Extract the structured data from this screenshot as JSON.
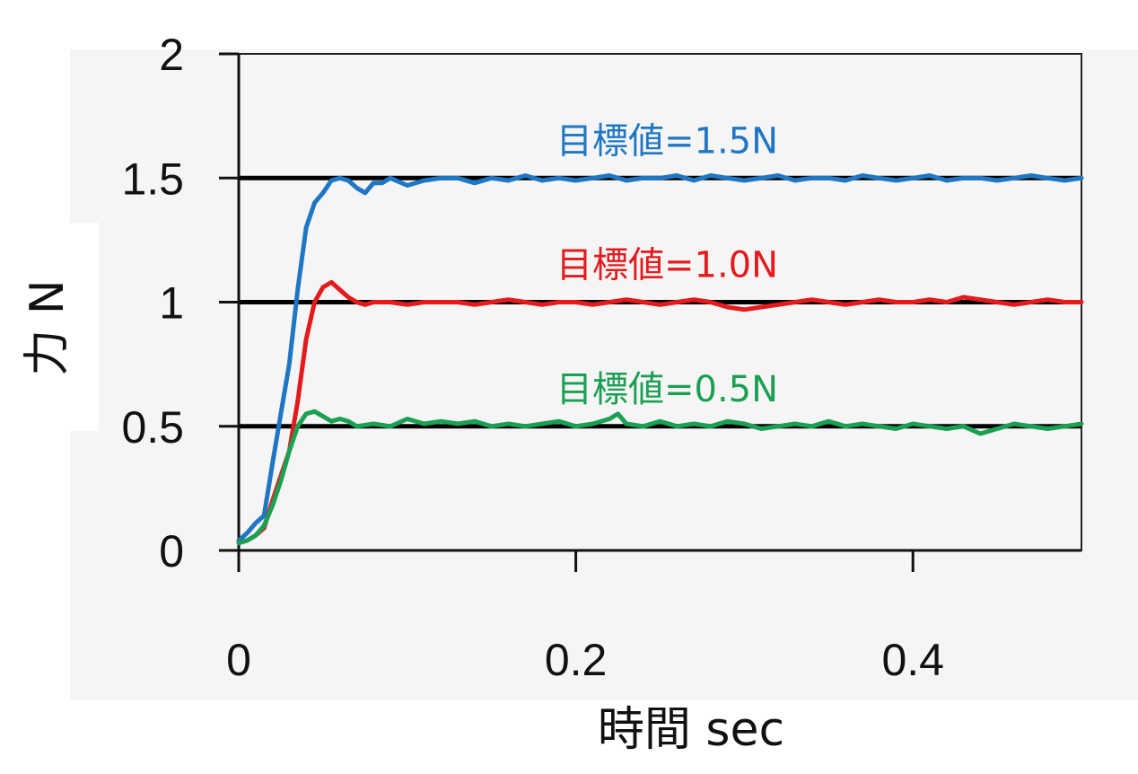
{
  "chart_data": {
    "type": "line",
    "xlabel": "時間 sec",
    "ylabel": "力 N",
    "xlim": [
      0,
      0.5
    ],
    "ylim": [
      0,
      2
    ],
    "x_ticks": [
      0,
      0.2,
      0.4
    ],
    "x_tick_labels": [
      "0",
      "0.2",
      "0.4"
    ],
    "y_ticks": [
      0,
      0.5,
      1,
      1.5,
      2
    ],
    "y_tick_labels": [
      "0",
      "0.5",
      "1",
      "1.5",
      "2"
    ],
    "reference_lines": [
      0.5,
      1.0,
      1.5
    ],
    "grid": false,
    "legend": "none",
    "series": [
      {
        "label": "目標値=1.5N",
        "color": "#1f77c4",
        "x": [
          0,
          0.005,
          0.01,
          0.015,
          0.02,
          0.025,
          0.03,
          0.035,
          0.04,
          0.045,
          0.05,
          0.055,
          0.06,
          0.065,
          0.07,
          0.075,
          0.08,
          0.085,
          0.09,
          0.1,
          0.11,
          0.12,
          0.13,
          0.14,
          0.15,
          0.16,
          0.17,
          0.18,
          0.19,
          0.2,
          0.21,
          0.22,
          0.23,
          0.24,
          0.25,
          0.26,
          0.27,
          0.28,
          0.29,
          0.3,
          0.31,
          0.32,
          0.33,
          0.34,
          0.35,
          0.36,
          0.37,
          0.38,
          0.39,
          0.4,
          0.41,
          0.42,
          0.43,
          0.44,
          0.45,
          0.46,
          0.47,
          0.48,
          0.49,
          0.5
        ],
        "y": [
          0.04,
          0.07,
          0.11,
          0.14,
          0.35,
          0.55,
          0.75,
          1.05,
          1.3,
          1.4,
          1.44,
          1.49,
          1.5,
          1.49,
          1.46,
          1.44,
          1.48,
          1.48,
          1.5,
          1.47,
          1.49,
          1.5,
          1.5,
          1.48,
          1.5,
          1.49,
          1.51,
          1.49,
          1.5,
          1.49,
          1.5,
          1.51,
          1.49,
          1.5,
          1.5,
          1.51,
          1.49,
          1.51,
          1.5,
          1.49,
          1.5,
          1.51,
          1.49,
          1.5,
          1.5,
          1.49,
          1.51,
          1.5,
          1.49,
          1.5,
          1.51,
          1.49,
          1.5,
          1.5,
          1.49,
          1.5,
          1.51,
          1.5,
          1.49,
          1.5
        ]
      },
      {
        "label": "目標値=1.0N",
        "color": "#e41a1c",
        "x": [
          0,
          0.005,
          0.01,
          0.015,
          0.02,
          0.025,
          0.03,
          0.035,
          0.04,
          0.045,
          0.05,
          0.055,
          0.06,
          0.065,
          0.07,
          0.075,
          0.08,
          0.09,
          0.1,
          0.11,
          0.12,
          0.13,
          0.14,
          0.15,
          0.16,
          0.17,
          0.18,
          0.19,
          0.2,
          0.21,
          0.22,
          0.23,
          0.24,
          0.25,
          0.26,
          0.27,
          0.28,
          0.29,
          0.3,
          0.31,
          0.32,
          0.33,
          0.34,
          0.35,
          0.36,
          0.37,
          0.38,
          0.39,
          0.4,
          0.41,
          0.42,
          0.43,
          0.44,
          0.45,
          0.46,
          0.47,
          0.48,
          0.49,
          0.5
        ],
        "y": [
          0.03,
          0.04,
          0.06,
          0.09,
          0.2,
          0.3,
          0.4,
          0.6,
          0.85,
          1.0,
          1.06,
          1.08,
          1.05,
          1.02,
          1.0,
          0.99,
          1.0,
          1.0,
          0.99,
          1.0,
          1.0,
          1.0,
          0.99,
          1.0,
          1.01,
          1.0,
          0.99,
          1.0,
          1.0,
          0.99,
          1.0,
          1.01,
          1.0,
          0.99,
          1.0,
          1.01,
          1.0,
          0.98,
          0.97,
          0.98,
          0.99,
          1.0,
          1.01,
          1.0,
          0.99,
          1.0,
          1.01,
          1.0,
          1.0,
          1.01,
          1.0,
          1.02,
          1.01,
          1.0,
          0.99,
          1.0,
          1.01,
          1.0,
          1.0
        ]
      },
      {
        "label": "目標値=0.5N",
        "color": "#1aa052",
        "x": [
          0,
          0.005,
          0.01,
          0.015,
          0.02,
          0.025,
          0.03,
          0.035,
          0.04,
          0.045,
          0.05,
          0.055,
          0.06,
          0.065,
          0.07,
          0.08,
          0.09,
          0.1,
          0.11,
          0.12,
          0.13,
          0.14,
          0.15,
          0.16,
          0.17,
          0.18,
          0.19,
          0.2,
          0.21,
          0.22,
          0.225,
          0.23,
          0.24,
          0.25,
          0.26,
          0.27,
          0.28,
          0.29,
          0.3,
          0.31,
          0.32,
          0.33,
          0.34,
          0.35,
          0.36,
          0.37,
          0.38,
          0.39,
          0.4,
          0.41,
          0.42,
          0.43,
          0.44,
          0.45,
          0.46,
          0.47,
          0.48,
          0.49,
          0.5
        ],
        "y": [
          0.03,
          0.04,
          0.06,
          0.1,
          0.18,
          0.28,
          0.4,
          0.5,
          0.55,
          0.56,
          0.54,
          0.52,
          0.53,
          0.52,
          0.5,
          0.51,
          0.5,
          0.53,
          0.51,
          0.52,
          0.51,
          0.52,
          0.5,
          0.51,
          0.5,
          0.51,
          0.52,
          0.5,
          0.51,
          0.53,
          0.55,
          0.51,
          0.5,
          0.52,
          0.5,
          0.51,
          0.5,
          0.52,
          0.51,
          0.49,
          0.5,
          0.51,
          0.5,
          0.52,
          0.5,
          0.51,
          0.5,
          0.49,
          0.51,
          0.5,
          0.49,
          0.5,
          0.47,
          0.49,
          0.51,
          0.5,
          0.49,
          0.5,
          0.51
        ]
      }
    ]
  }
}
